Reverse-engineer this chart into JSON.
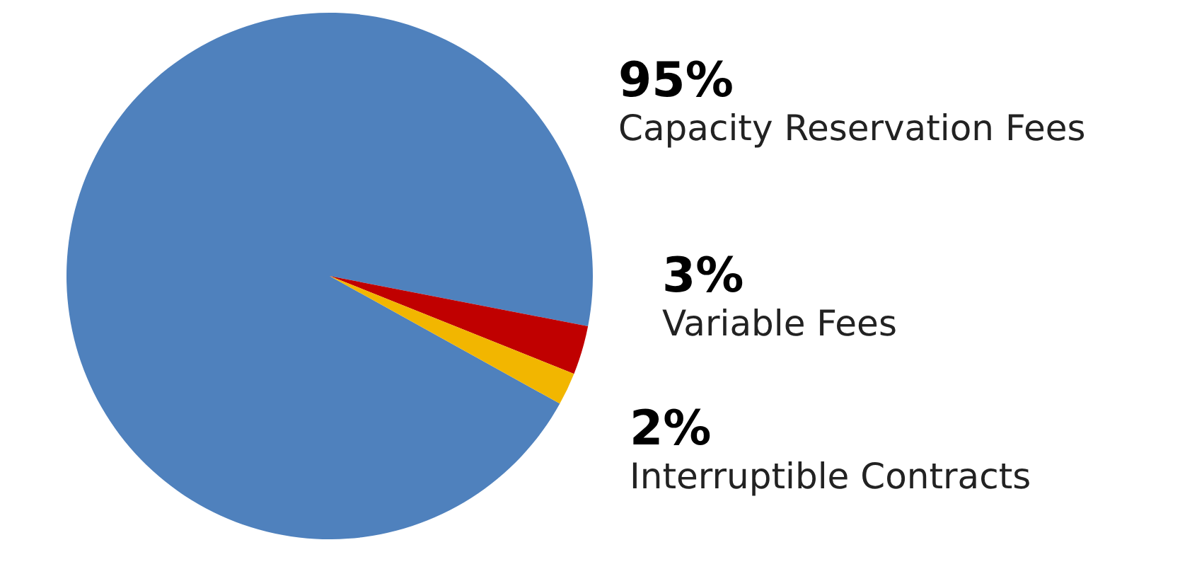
{
  "chart_data": {
    "type": "pie",
    "categories": [
      "Capacity Reservation Fees",
      "Variable Fees",
      "Interruptible Contracts"
    ],
    "values": [
      95,
      3,
      2
    ],
    "value_labels": [
      "95%",
      "3%",
      "2%"
    ],
    "colors": [
      "#4f81bd",
      "#c00000",
      "#f2b600"
    ]
  }
}
